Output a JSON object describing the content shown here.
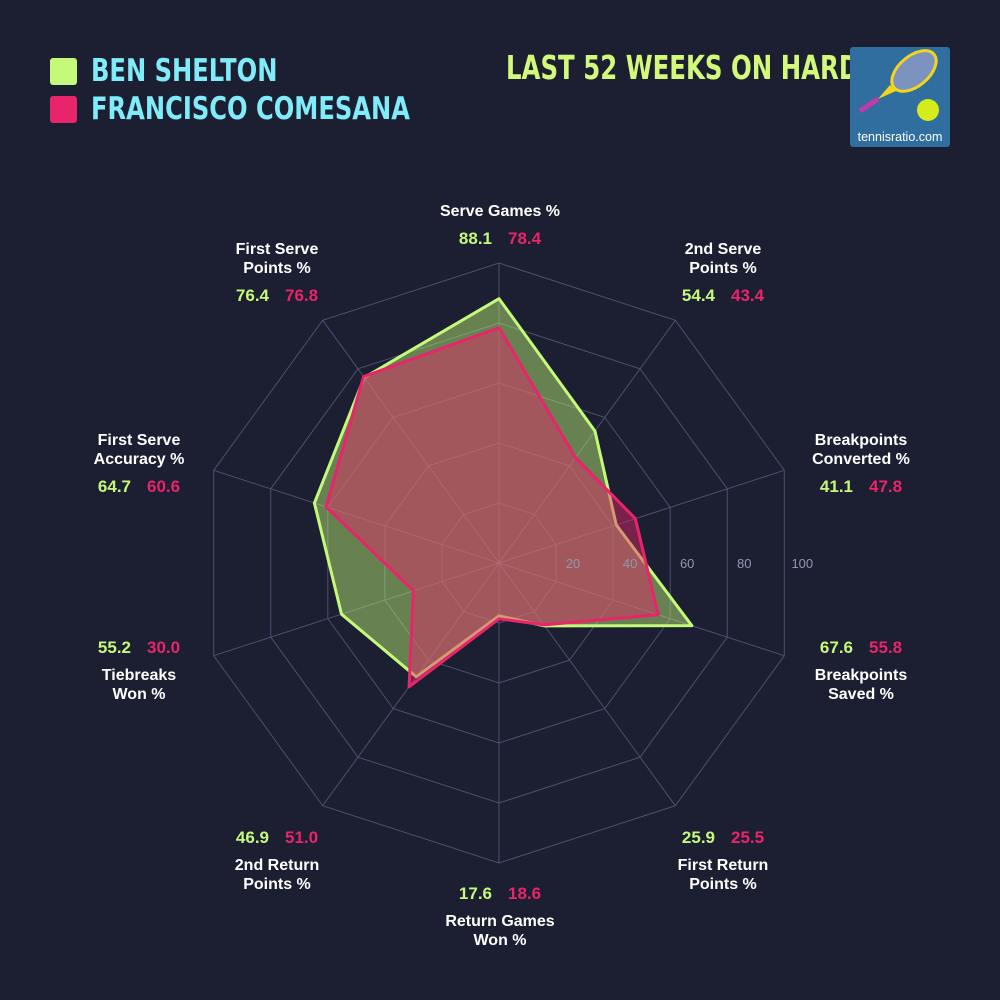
{
  "legend": [
    {
      "name": "BEN SHELTON",
      "color": "#c5f97a"
    },
    {
      "name": "FRANCISCO COMESANA",
      "color": "#e8246a"
    }
  ],
  "subtitle": "LAST 52 WEEKS ON HARD",
  "logo": {
    "text": "tennisratio.com",
    "icon": "tennis-racket-and-ball-logo"
  },
  "chart_data": {
    "type": "radar",
    "categories": [
      [
        "Serve Games %"
      ],
      [
        "2nd Serve",
        "Points %"
      ],
      [
        "Breakpoints",
        "Converted %"
      ],
      [
        "Breakpoints",
        "Saved %"
      ],
      [
        "First Return",
        "Points %"
      ],
      [
        "Return Games",
        "Won %"
      ],
      [
        "2nd Return",
        "Points %"
      ],
      [
        "Tiebreaks",
        "Won %"
      ],
      [
        "First Serve",
        "Accuracy %"
      ],
      [
        "First Serve",
        "Points %"
      ]
    ],
    "series": [
      {
        "name": "BEN SHELTON",
        "color": "#c5f97a",
        "values": [
          88.1,
          54.4,
          41.1,
          67.6,
          25.9,
          17.6,
          46.9,
          55.2,
          64.7,
          76.4
        ]
      },
      {
        "name": "FRANCISCO COMESANA",
        "color": "#e8246a",
        "values": [
          78.4,
          43.4,
          47.8,
          55.8,
          25.5,
          18.6,
          51.0,
          30.0,
          60.6,
          76.8
        ]
      }
    ],
    "value_labels": [
      [
        "88.1",
        "54.4",
        "41.1",
        "67.6",
        "25.9",
        "17.6",
        "46.9",
        "55.2",
        "64.7",
        "76.4"
      ],
      [
        "78.4",
        "43.4",
        "47.8",
        "55.8",
        "25.5",
        "18.6",
        "51.0",
        "30.0",
        "60.6",
        "76.8"
      ]
    ],
    "rlim": [
      0,
      100
    ],
    "ticks": [
      "20",
      "40",
      "60",
      "80",
      "100"
    ],
    "grid": true
  }
}
